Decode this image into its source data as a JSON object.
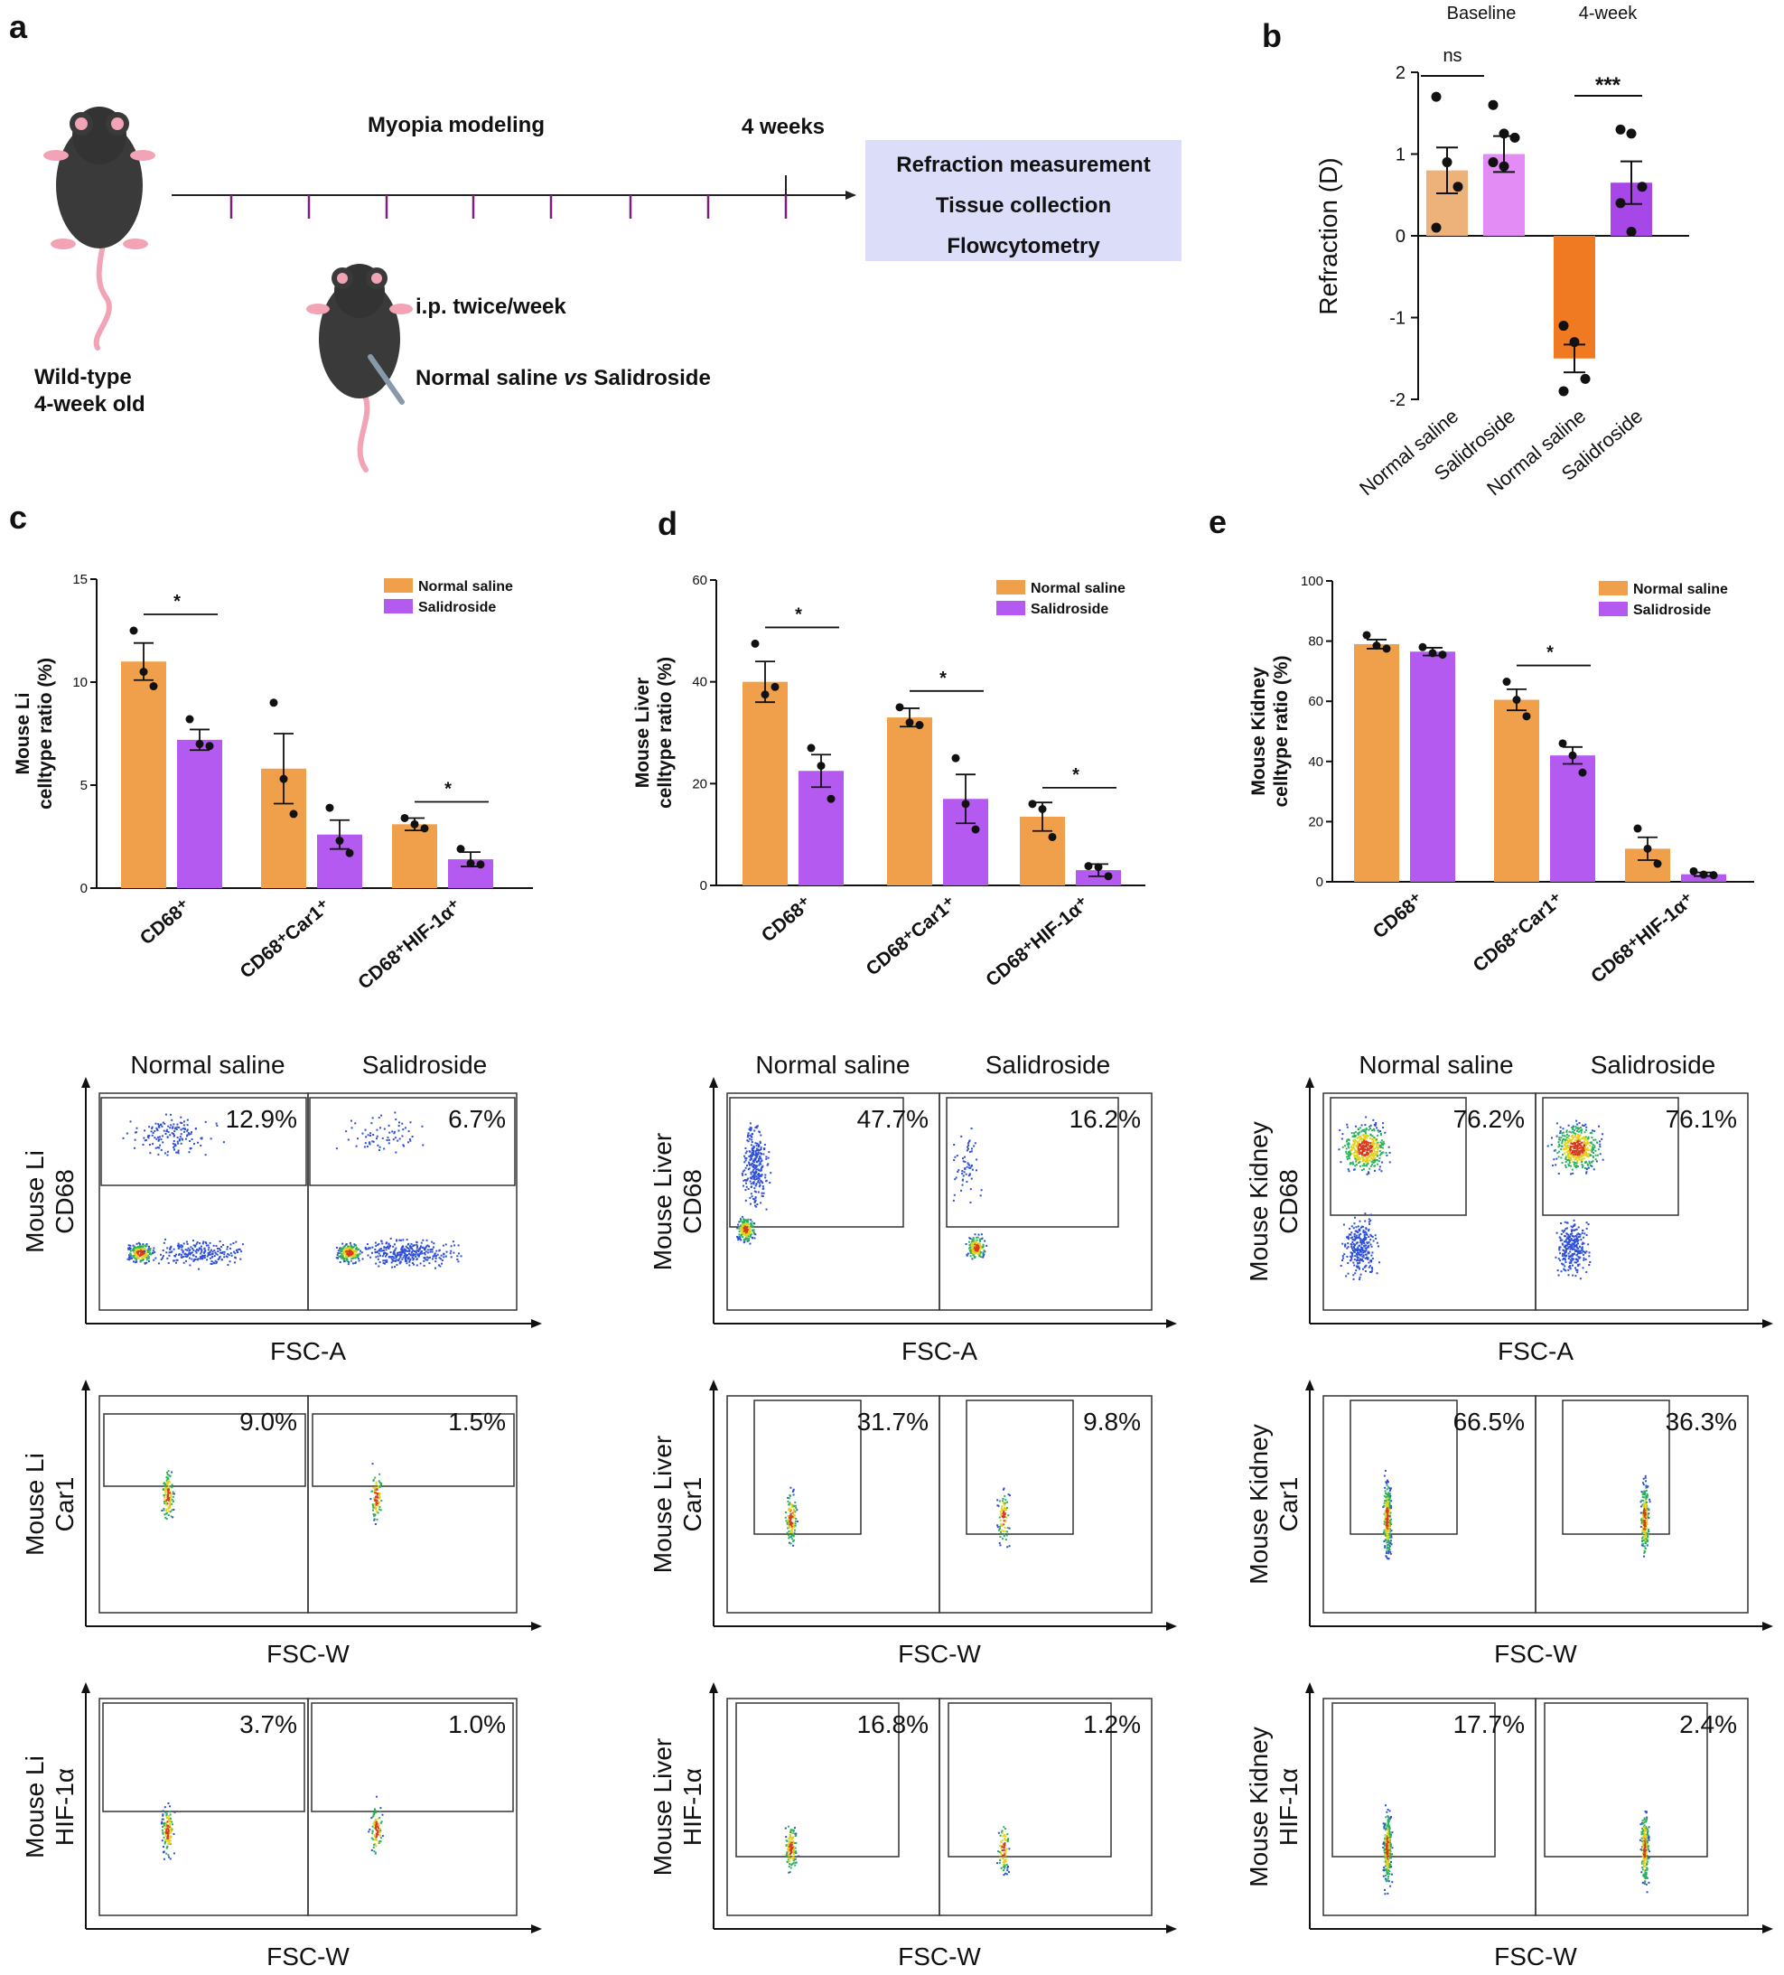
{
  "colors": {
    "saline_light": "#EDB27A",
    "salid_light": "#E38CF5",
    "saline": "#F0A04B",
    "salid": "#B45AF0",
    "saline_dark": "#F07A22",
    "salid_dark": "#A847E8",
    "timeline_tick": "#7A1F7A",
    "box_fill": "#DCDDF8"
  },
  "panel_a": {
    "label": "a",
    "myopia_modeling": "Myopia modeling",
    "four_weeks": "4 weeks",
    "outcomes": [
      "Refraction measurement",
      "Tissue collection",
      "Flowcytometry"
    ],
    "ip_text": "i.p. twice/week",
    "treatment_prefix": "Normal saline ",
    "treatment_vs": "vs",
    "treatment_suffix": " Salidroside",
    "mouse_line1": "Wild-type",
    "mouse_line2": "4-week old"
  },
  "panel_b": {
    "label": "b",
    "chart_data": {
      "type": "bar",
      "title": "",
      "ylabel": "Refraction (D)",
      "ylim": [
        -2,
        2
      ],
      "yticks": [
        "2",
        "1",
        "0",
        "-1",
        "-2"
      ],
      "groups": [
        "Baseline",
        "4-week"
      ],
      "categories": [
        "Normal saline",
        "Salidroside",
        "Normal saline",
        "Salidroside"
      ],
      "values": [
        0.8,
        1.0,
        -1.5,
        0.65
      ],
      "errors": [
        0.28,
        0.22,
        0.17,
        0.26
      ],
      "points": [
        [
          1.7,
          0.9,
          0.6,
          0.1
        ],
        [
          1.6,
          1.25,
          1.2,
          0.9,
          0.85
        ],
        [
          -1.1,
          -1.3,
          -1.75,
          -1.9
        ],
        [
          1.3,
          1.25,
          0.6,
          0.4,
          0.05
        ]
      ],
      "significance": [
        "ns",
        "***"
      ]
    }
  },
  "panel_c": {
    "label": "c",
    "chart_data": {
      "type": "bar",
      "ylabel_line1": "Mouse Li",
      "ylabel_line2": "celltype ratio (%)",
      "ylim": [
        0,
        15
      ],
      "yticks": [
        "15",
        "10",
        "5",
        "0"
      ],
      "categories": [
        "CD68⁺",
        "CD68⁺Car1⁺",
        "CD68⁺HIF-1α⁺"
      ],
      "series": [
        {
          "name": "Normal saline",
          "values": [
            11.0,
            5.8,
            3.1
          ],
          "errors": [
            0.9,
            1.7,
            0.3
          ],
          "points": [
            [
              12.5,
              10.5,
              9.8
            ],
            [
              9.0,
              5.3,
              3.6
            ],
            [
              3.4,
              3.1,
              2.9
            ]
          ]
        },
        {
          "name": "Salidroside",
          "values": [
            7.2,
            2.6,
            1.4
          ],
          "errors": [
            0.5,
            0.7,
            0.35
          ],
          "points": [
            [
              8.2,
              7.0,
              6.9
            ],
            [
              3.9,
              2.3,
              1.7
            ],
            [
              1.9,
              1.2,
              1.15
            ]
          ]
        }
      ],
      "significance": [
        "*",
        "",
        "*"
      ]
    }
  },
  "panel_d": {
    "label": "d",
    "chart_data": {
      "type": "bar",
      "ylabel_line1": "Mouse Liver",
      "ylabel_line2": "celltype ratio (%)",
      "ylim": [
        0,
        60
      ],
      "yticks": [
        "60",
        "40",
        "20",
        "0"
      ],
      "categories": [
        "CD68⁺",
        "CD68⁺Car1⁺",
        "CD68⁺HIF-1α⁺"
      ],
      "series": [
        {
          "name": "Normal saline",
          "values": [
            40,
            33,
            13.5
          ],
          "errors": [
            4,
            1.8,
            2.8
          ],
          "points": [
            [
              47.5,
              37.5,
              39
            ],
            [
              35,
              32,
              31.5
            ],
            [
              16,
              15,
              9.5
            ]
          ]
        },
        {
          "name": "Salidroside",
          "values": [
            22.5,
            17,
            3
          ],
          "errors": [
            3.2,
            4.8,
            1.2
          ],
          "points": [
            [
              27,
              23.5,
              17
            ],
            [
              25,
              16,
              11
            ],
            [
              3.8,
              3.6,
              1.8
            ]
          ]
        }
      ],
      "significance": [
        "*",
        "*",
        "*"
      ]
    }
  },
  "panel_e": {
    "label": "e",
    "chart_data": {
      "type": "bar",
      "ylabel_line1": "Mouse Kidney",
      "ylabel_line2": "celltype ratio (%)",
      "ylim": [
        0,
        100
      ],
      "yticks": [
        "100",
        "80",
        "60",
        "40",
        "20",
        "0"
      ],
      "categories": [
        "CD68⁺",
        "CD68⁺Car1⁺",
        "CD68⁺HIF-1α⁺"
      ],
      "series": [
        {
          "name": "Normal saline",
          "values": [
            79,
            60.5,
            11
          ],
          "errors": [
            1.5,
            3.5,
            3.8
          ],
          "points": [
            [
              82,
              78.5,
              77.5
            ],
            [
              66.5,
              60.5,
              55
            ],
            [
              17.7,
              11,
              6
            ]
          ]
        },
        {
          "name": "Salidroside",
          "values": [
            76.5,
            42,
            2.5
          ],
          "errors": [
            1.3,
            2.8,
            0.6
          ],
          "points": [
            [
              78,
              76,
              75.5
            ],
            [
              46,
              42,
              36.3
            ],
            [
              3.5,
              2.4,
              2.2
            ]
          ]
        }
      ],
      "significance": [
        "",
        "*",
        ""
      ]
    }
  },
  "flow": {
    "columns": [
      {
        "tissue": "Mouse Li",
        "rows": [
          {
            "marker": "CD68",
            "xlabel": "FSC-A",
            "pct_saline": "12.9%",
            "pct_salid": "6.7%"
          },
          {
            "marker": "Car1",
            "xlabel": "FSC-W",
            "pct_saline": "9.0%",
            "pct_salid": "1.5%"
          },
          {
            "marker": "HIF-1α",
            "xlabel": "FSC-W",
            "pct_saline": "3.7%",
            "pct_salid": "1.0%"
          }
        ]
      },
      {
        "tissue": "Mouse Liver",
        "rows": [
          {
            "marker": "CD68",
            "xlabel": "FSC-A",
            "pct_saline": "47.7%",
            "pct_salid": "16.2%"
          },
          {
            "marker": "Car1",
            "xlabel": "FSC-W",
            "pct_saline": "31.7%",
            "pct_salid": "9.8%"
          },
          {
            "marker": "HIF-1α",
            "xlabel": "FSC-W",
            "pct_saline": "16.8%",
            "pct_salid": "1.2%"
          }
        ]
      },
      {
        "tissue": "Mouse Kidney",
        "rows": [
          {
            "marker": "CD68",
            "xlabel": "FSC-A",
            "pct_saline": "76.2%",
            "pct_salid": "76.1%"
          },
          {
            "marker": "Car1",
            "xlabel": "FSC-W",
            "pct_saline": "66.5%",
            "pct_salid": "36.3%"
          },
          {
            "marker": "HIF-1α",
            "xlabel": "FSC-W",
            "pct_saline": "17.7%",
            "pct_salid": "2.4%"
          }
        ]
      }
    ],
    "header_saline": "Normal saline",
    "header_salid": "Salidroside"
  }
}
